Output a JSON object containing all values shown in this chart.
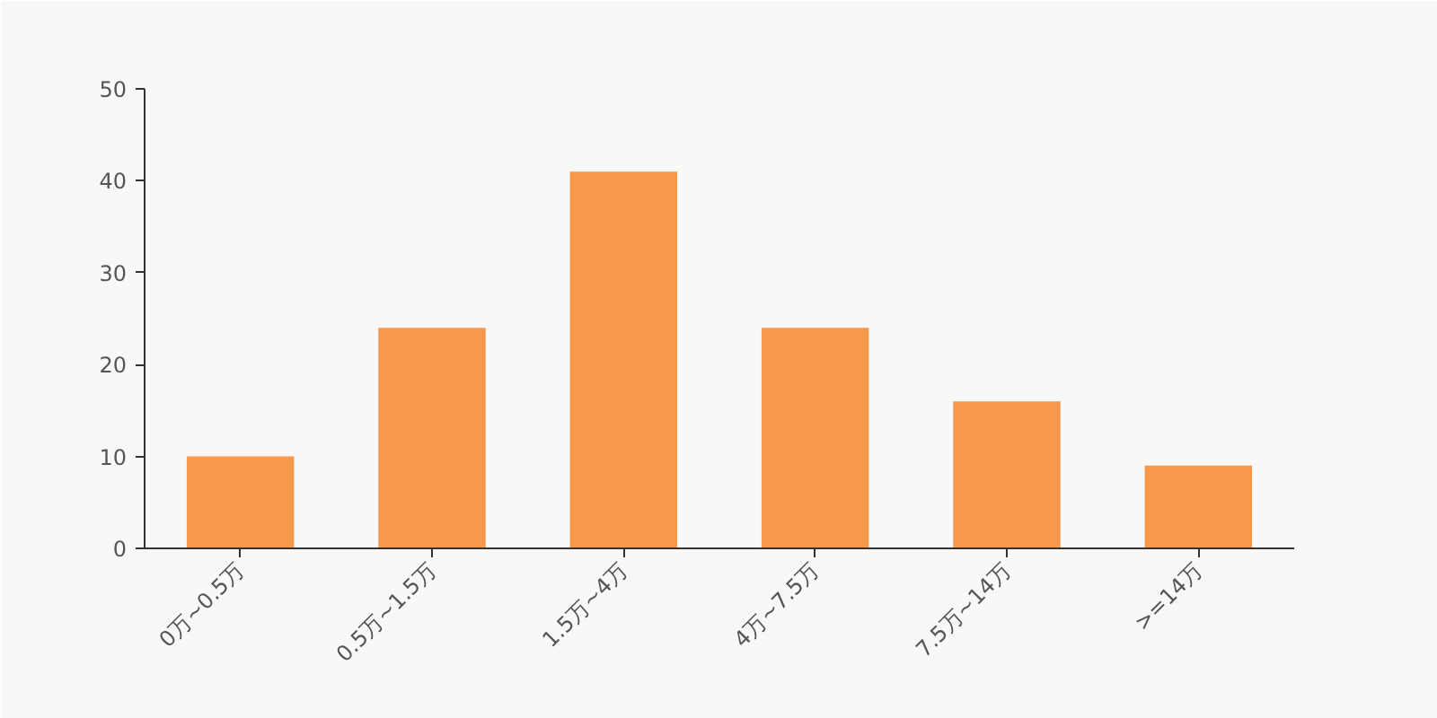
{
  "chart_data": {
    "type": "bar",
    "categories": [
      "0万~0.5万",
      "0.5万~1.5万",
      "1.5万~4万",
      "4万~7.5万",
      "7.5万~14万",
      ">=14万"
    ],
    "values": [
      10,
      24,
      41,
      24,
      16,
      9
    ],
    "color": "#f8984a",
    "ylim": [
      0,
      50
    ],
    "yticks": [
      0,
      10,
      20,
      30,
      40,
      50
    ],
    "grid": false
  }
}
